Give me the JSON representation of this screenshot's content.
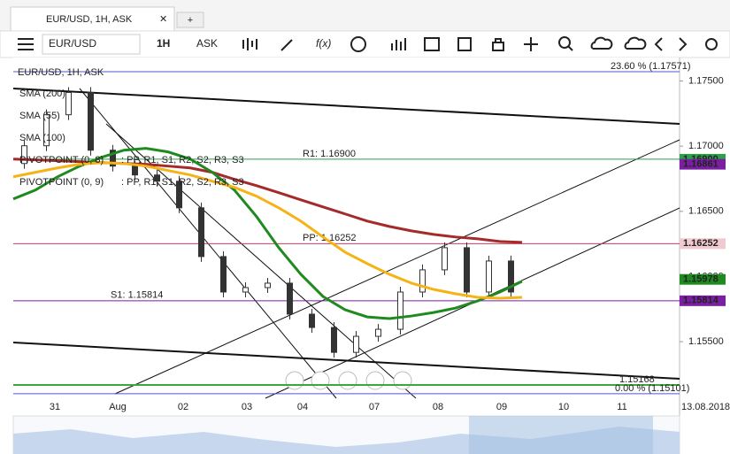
{
  "tab": {
    "title": "EUR/USD, 1H, ASK",
    "add": "+"
  },
  "toolbar": {
    "symbol": "EUR/USD",
    "timeframe": "1H",
    "side": "ASK",
    "fx": "f(x)"
  },
  "chart": {
    "legend_title": "EUR/USD, 1H, ASK",
    "pivots": [
      {
        "name": "PIVOTPOINT (0, 8)",
        "items": ": PP, R1, S1, R2, S2, R3, S3",
        "color": "#1a1a1a"
      },
      {
        "name": "PIVOTPOINT (0, 9)",
        "items": ": PP, R1, S1, R2, S2, R3, S3",
        "color": "#7a1fa2"
      }
    ],
    "ylim": [
      1.151,
      1.1768
    ],
    "yticks": [
      {
        "value": 1.175,
        "label": "1.17500"
      },
      {
        "value": 1.17,
        "label": "1.17000"
      },
      {
        "value": 1.165,
        "label": "1.16500"
      },
      {
        "value": 1.16,
        "label": "1.16000"
      },
      {
        "value": 1.155,
        "label": "1.15500"
      }
    ],
    "categories": [
      "31",
      "Aug",
      "02",
      "03",
      "04",
      "07",
      "08",
      "09",
      "10",
      "11"
    ],
    "date": "13.08.2018",
    "price": [
      1.16867,
      1.17003,
      1.17241,
      1.17412,
      1.16969,
      1.16847,
      1.16779,
      1.16731,
      1.16527,
      1.16153,
      1.15881,
      1.15915,
      1.15949,
      1.15711,
      1.15609,
      1.15418,
      1.15541,
      1.15595,
      1.15881,
      1.16051,
      1.16221,
      1.15881,
      1.16119,
      1.15881
    ],
    "series": [
      {
        "name": "SMA (200)",
        "color": "#a52a2a",
        "values": [
          1.16901,
          1.16895,
          1.16888,
          1.16881,
          1.16874,
          1.16867,
          1.16861,
          1.16847,
          1.16833,
          1.16799,
          1.16745,
          1.16697,
          1.16643,
          1.16588,
          1.16534,
          1.1648,
          1.16425,
          1.16384,
          1.1635,
          1.16323,
          1.16303,
          1.16289,
          1.16269,
          1.16262
        ]
      },
      {
        "name": "SMA (55)",
        "color": "#1f8a1f",
        "values": [
          1.16595,
          1.16663,
          1.16765,
          1.16847,
          1.16915,
          1.16969,
          1.16983,
          1.16956,
          1.16901,
          1.16799,
          1.16663,
          1.16459,
          1.16221,
          1.16017,
          1.15847,
          1.15745,
          1.1569,
          1.15677,
          1.15697,
          1.15724,
          1.15758,
          1.15813,
          1.15881,
          1.15963
        ]
      },
      {
        "name": "SMA (100)",
        "color": "#f5b316",
        "values": [
          1.16765,
          1.16799,
          1.16833,
          1.16861,
          1.16874,
          1.16867,
          1.16847,
          1.16813,
          1.16779,
          1.16731,
          1.16684,
          1.16616,
          1.16527,
          1.16425,
          1.16303,
          1.16187,
          1.16099,
          1.16017,
          1.15949,
          1.15901,
          1.15867,
          1.1584,
          1.15833,
          1.1584
        ]
      }
    ],
    "levels": [
      {
        "label": "23.60 % (1.17571)",
        "value": 1.17571,
        "color": "#5555cc"
      },
      {
        "label": "R1: 1.16900",
        "value": 1.169,
        "color": "#2e9e4a"
      },
      {
        "label": "PP: 1.16252",
        "value": 1.16252,
        "color": "#c04060"
      },
      {
        "label": "S1: 1.15814",
        "value": 1.15814,
        "color": "#7a1fa2"
      },
      {
        "label": "1.15168",
        "value": 1.15168,
        "color": "#3aa83a"
      },
      {
        "label": "0.00 % (1.15101)",
        "value": 1.15101,
        "color": "#5555cc"
      }
    ],
    "price_tags": [
      {
        "label": "1.16900",
        "value": 1.169,
        "color": "#2e9e4a"
      },
      {
        "label": "1.16861",
        "value": 1.16861,
        "color": "#7a1fa2"
      },
      {
        "label": "1.16252",
        "value": 1.16252,
        "color": "#f2c9cf"
      },
      {
        "label": "1.15978",
        "value": 1.15978,
        "color": "#1f8a1f"
      },
      {
        "label": "1.15814",
        "value": 1.15814,
        "color": "#7a1fa2"
      }
    ]
  }
}
